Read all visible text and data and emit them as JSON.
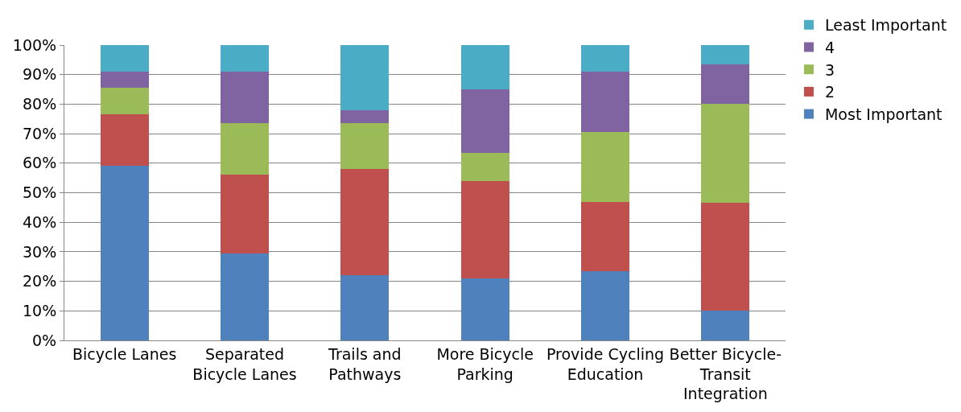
{
  "chart_data": {
    "type": "bar",
    "stacked": true,
    "categories": [
      "Bicycle Lanes",
      "Separated Bicycle Lanes",
      "Trails and Pathways",
      "More Bicycle Parking",
      "Provide Cycling Education",
      "Better Bicycle-Transit Integration"
    ],
    "series": [
      {
        "name": "Most Important",
        "color": "#4f81bd",
        "values": [
          59,
          29.5,
          22,
          21,
          23.5,
          10
        ]
      },
      {
        "name": "2",
        "color": "#c0504d",
        "values": [
          17.5,
          26.5,
          36,
          33,
          23.5,
          36.5
        ]
      },
      {
        "name": "3",
        "color": "#9bbb59",
        "values": [
          9,
          17.5,
          15.5,
          9.5,
          23.5,
          33.5
        ]
      },
      {
        "name": "4",
        "color": "#8064a2",
        "values": [
          5.5,
          17.5,
          4.5,
          21.5,
          20.5,
          13.5
        ]
      },
      {
        "name": "Least Important",
        "color": "#4bacc6",
        "values": [
          9,
          9,
          22,
          15,
          9,
          6.5
        ]
      }
    ],
    "ylim": [
      0,
      100
    ],
    "yticks": [
      {
        "value": 0,
        "label": "0%"
      },
      {
        "value": 10,
        "label": "10%"
      },
      {
        "value": 20,
        "label": "20%"
      },
      {
        "value": 30,
        "label": "30%"
      },
      {
        "value": 40,
        "label": "40%"
      },
      {
        "value": 50,
        "label": "50%"
      },
      {
        "value": 60,
        "label": "60%"
      },
      {
        "value": 70,
        "label": "70%"
      },
      {
        "value": 80,
        "label": "80%"
      },
      {
        "value": 90,
        "label": "90%"
      },
      {
        "value": 100,
        "label": "100%"
      }
    ],
    "grid": "y",
    "legend": "right"
  }
}
